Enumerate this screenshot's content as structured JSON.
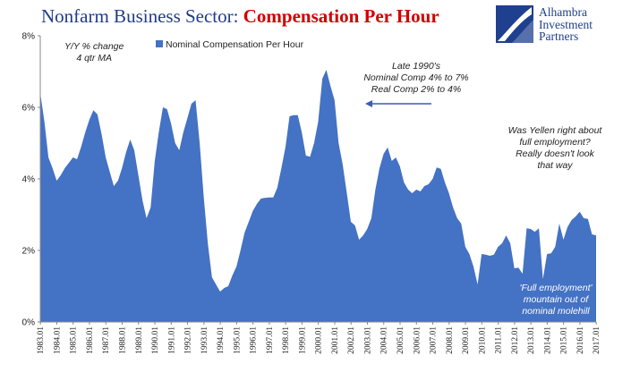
{
  "title": {
    "part1": "Nonfarm Business Sector: ",
    "part2": "Compensation Per Hour"
  },
  "logo": {
    "line1": "Alhambra",
    "line2": "Investment",
    "line3": "Partners"
  },
  "colors": {
    "area": "#4472c4",
    "title_blue": "#1f3a8a",
    "title_red": "#d00000",
    "logo": "#1f3f8f",
    "arrow": "#3a5db0"
  },
  "legend": {
    "note1": "Y/Y % change",
    "note2": "4 qtr MA",
    "label": "Nominal Compensation Per Hour"
  },
  "annotations": {
    "late90s": [
      "Late 1990's",
      "Nominal Comp 4% to 7%",
      "Real Comp 2% to 4%"
    ],
    "yellen": [
      "Was Yellen right about",
      "full employment?",
      "Really doesn't look",
      "that way"
    ],
    "molehill": [
      "'Full employment'",
      "mountain out of",
      "nominal molehill"
    ]
  },
  "chart_data": {
    "type": "area",
    "title": "Nonfarm Business Sector: Compensation Per Hour",
    "series": [
      {
        "name": "Nominal Compensation Per Hour",
        "unit": "Y/Y % change, 4 qtr MA"
      }
    ],
    "ylim": [
      0,
      8
    ],
    "yticks": [
      "0%",
      "2%",
      "4%",
      "6%",
      "8%"
    ],
    "xticks": [
      "1983.01",
      "1984.01",
      "1985.01",
      "1986.01",
      "1987.01",
      "1988.01",
      "1989.01",
      "1990.01",
      "1991.01",
      "1992.01",
      "1993.01",
      "1994.01",
      "1995.01",
      "1996.01",
      "1997.01",
      "1998.01",
      "1999.01",
      "2000.01",
      "2001.01",
      "2002.01",
      "2003.01",
      "2004.01",
      "2005.01",
      "2006.01",
      "2007.01",
      "2008.01",
      "2009.01",
      "2010.01",
      "2011.01",
      "2012.01",
      "2013.01",
      "2014.01",
      "2015.01",
      "2016.01",
      "2017.01"
    ],
    "grid": false,
    "legend_position": "top-left",
    "points": [
      [
        1983.0,
        6.4
      ],
      [
        1983.25,
        5.6
      ],
      [
        1983.5,
        4.6
      ],
      [
        1983.75,
        4.3
      ],
      [
        1984.0,
        3.95
      ],
      [
        1984.25,
        4.1
      ],
      [
        1984.5,
        4.3
      ],
      [
        1984.75,
        4.45
      ],
      [
        1985.0,
        4.6
      ],
      [
        1985.25,
        4.55
      ],
      [
        1985.5,
        4.9
      ],
      [
        1985.75,
        5.3
      ],
      [
        1986.0,
        5.65
      ],
      [
        1986.25,
        5.92
      ],
      [
        1986.5,
        5.8
      ],
      [
        1986.75,
        5.25
      ],
      [
        1987.0,
        4.6
      ],
      [
        1987.25,
        4.2
      ],
      [
        1987.5,
        3.8
      ],
      [
        1987.75,
        3.95
      ],
      [
        1988.0,
        4.3
      ],
      [
        1988.25,
        4.75
      ],
      [
        1988.5,
        5.1
      ],
      [
        1988.75,
        4.8
      ],
      [
        1989.0,
        4.1
      ],
      [
        1989.25,
        3.4
      ],
      [
        1989.5,
        2.9
      ],
      [
        1989.75,
        3.2
      ],
      [
        1990.0,
        4.5
      ],
      [
        1990.25,
        5.3
      ],
      [
        1990.5,
        6.0
      ],
      [
        1990.75,
        5.95
      ],
      [
        1991.0,
        5.55
      ],
      [
        1991.25,
        5.0
      ],
      [
        1991.5,
        4.8
      ],
      [
        1991.75,
        5.3
      ],
      [
        1992.0,
        5.7
      ],
      [
        1992.25,
        6.1
      ],
      [
        1992.5,
        6.2
      ],
      [
        1992.75,
        5.0
      ],
      [
        1993.0,
        3.5
      ],
      [
        1993.25,
        2.2
      ],
      [
        1993.5,
        1.25
      ],
      [
        1993.75,
        1.05
      ],
      [
        1994.0,
        0.85
      ],
      [
        1994.25,
        0.95
      ],
      [
        1994.5,
        1.0
      ],
      [
        1994.75,
        1.3
      ],
      [
        1995.0,
        1.55
      ],
      [
        1995.25,
        2.0
      ],
      [
        1995.5,
        2.5
      ],
      [
        1995.75,
        2.8
      ],
      [
        1996.0,
        3.1
      ],
      [
        1996.25,
        3.3
      ],
      [
        1996.5,
        3.45
      ],
      [
        1996.75,
        3.47
      ],
      [
        1997.0,
        3.48
      ],
      [
        1997.25,
        3.48
      ],
      [
        1997.5,
        3.75
      ],
      [
        1997.75,
        4.3
      ],
      [
        1998.0,
        4.9
      ],
      [
        1998.25,
        5.75
      ],
      [
        1998.5,
        5.78
      ],
      [
        1998.75,
        5.78
      ],
      [
        1999.0,
        5.3
      ],
      [
        1999.25,
        4.65
      ],
      [
        1999.5,
        4.62
      ],
      [
        1999.75,
        5.0
      ],
      [
        2000.0,
        5.6
      ],
      [
        2000.25,
        6.8
      ],
      [
        2000.5,
        7.05
      ],
      [
        2000.75,
        6.6
      ],
      [
        2001.0,
        6.2
      ],
      [
        2001.25,
        5.0
      ],
      [
        2001.5,
        4.4
      ],
      [
        2001.75,
        3.6
      ],
      [
        2002.0,
        2.8
      ],
      [
        2002.25,
        2.7
      ],
      [
        2002.5,
        2.3
      ],
      [
        2002.75,
        2.42
      ],
      [
        2003.0,
        2.6
      ],
      [
        2003.25,
        2.9
      ],
      [
        2003.5,
        3.7
      ],
      [
        2003.75,
        4.3
      ],
      [
        2004.0,
        4.7
      ],
      [
        2004.25,
        4.88
      ],
      [
        2004.5,
        4.5
      ],
      [
        2004.75,
        4.6
      ],
      [
        2005.0,
        4.35
      ],
      [
        2005.25,
        3.9
      ],
      [
        2005.5,
        3.7
      ],
      [
        2005.75,
        3.6
      ],
      [
        2006.0,
        3.7
      ],
      [
        2006.25,
        3.65
      ],
      [
        2006.5,
        3.8
      ],
      [
        2006.75,
        3.85
      ],
      [
        2007.0,
        4.0
      ],
      [
        2007.25,
        4.32
      ],
      [
        2007.5,
        4.28
      ],
      [
        2007.75,
        3.9
      ],
      [
        2008.0,
        3.6
      ],
      [
        2008.25,
        3.2
      ],
      [
        2008.5,
        2.9
      ],
      [
        2008.75,
        2.75
      ],
      [
        2009.0,
        2.1
      ],
      [
        2009.25,
        1.9
      ],
      [
        2009.5,
        1.55
      ],
      [
        2009.75,
        1.05
      ],
      [
        2010.0,
        1.9
      ],
      [
        2010.25,
        1.88
      ],
      [
        2010.5,
        1.85
      ],
      [
        2010.75,
        1.88
      ],
      [
        2011.0,
        2.1
      ],
      [
        2011.25,
        2.2
      ],
      [
        2011.5,
        2.42
      ],
      [
        2011.75,
        2.2
      ],
      [
        2012.0,
        1.5
      ],
      [
        2012.25,
        1.52
      ],
      [
        2012.5,
        1.35
      ],
      [
        2012.75,
        2.62
      ],
      [
        2013.0,
        2.6
      ],
      [
        2013.25,
        2.52
      ],
      [
        2013.5,
        2.62
      ],
      [
        2013.75,
        1.2
      ],
      [
        2014.0,
        1.9
      ],
      [
        2014.25,
        1.92
      ],
      [
        2014.5,
        2.1
      ],
      [
        2014.75,
        2.75
      ],
      [
        2015.0,
        2.3
      ],
      [
        2015.25,
        2.65
      ],
      [
        2015.5,
        2.85
      ],
      [
        2015.75,
        2.95
      ],
      [
        2016.0,
        3.08
      ],
      [
        2016.25,
        2.9
      ],
      [
        2016.5,
        2.88
      ],
      [
        2016.75,
        2.45
      ],
      [
        2017.0,
        2.42
      ]
    ]
  }
}
